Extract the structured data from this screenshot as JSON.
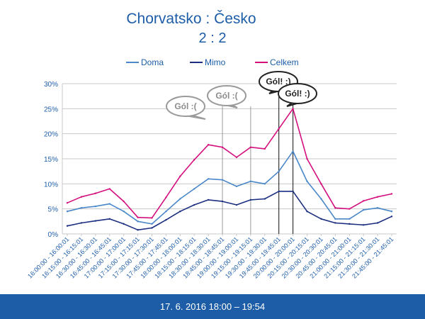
{
  "footer": {
    "caption": "17. 6. 2016 18:00 – 19:54"
  },
  "chart_data": {
    "type": "line",
    "title": "Chorvatsko : Česko",
    "subtitle": "2 : 2",
    "legend_position": "top",
    "grid": true,
    "ylim": [
      0,
      30
    ],
    "yticks": [
      "0%",
      "5%",
      "10%",
      "15%",
      "20%",
      "25%",
      "30%"
    ],
    "categories": [
      "16:00:00 - 16:00:01",
      "16:15:00 - 16:15:01",
      "16:30:00 - 16:30:01",
      "16:45:00 - 16:45:01",
      "17:00:00 - 17:00:01",
      "17:15:00 - 17:15:01",
      "17:30:00 - 17:30:01",
      "17:45:00 - 17:45:01",
      "18:00:00 - 18:00:01",
      "18:15:00 - 18:15:01",
      "18:30:00 - 18:30:01",
      "18:45:00 - 18:45:01",
      "19:00:00 - 19:00:01",
      "19:15:00 - 19:15:01",
      "19:30:00 - 19:30:01",
      "19:45:00 - 19:45:01",
      "20:00:00 - 20:00:01",
      "20:15:00 - 20:15:01",
      "20:30:00 - 20:30:01",
      "20:45:00 - 20:45:01",
      "21:00:00 - 21:00:01",
      "21:15:00 - 21:15:01",
      "21:30:00 - 21:30:01",
      "21:45:00 - 21:45:01"
    ],
    "series": [
      {
        "name": "Doma",
        "color": "#4a88c9",
        "values": [
          4.5,
          5.2,
          5.5,
          6.0,
          4.5,
          2.5,
          2.0,
          4.5,
          7.0,
          9.0,
          11.0,
          10.8,
          9.5,
          10.5,
          10.0,
          12.5,
          16.5,
          10.5,
          7.0,
          3.0,
          3.0,
          4.8,
          5.2,
          4.5
        ]
      },
      {
        "name": "Mimo",
        "color": "#1c2f80",
        "values": [
          1.6,
          2.2,
          2.6,
          3.0,
          2.0,
          0.8,
          1.2,
          2.8,
          4.5,
          5.8,
          6.8,
          6.5,
          5.8,
          6.8,
          7.0,
          8.5,
          8.5,
          4.5,
          3.0,
          2.2,
          2.0,
          1.8,
          2.2,
          3.5
        ]
      },
      {
        "name": "Celkem",
        "color": "#d4107e",
        "values": [
          6.2,
          7.4,
          8.1,
          9.0,
          6.5,
          3.3,
          3.2,
          7.3,
          11.5,
          14.8,
          17.8,
          17.3,
          15.3,
          17.3,
          17.0,
          21.0,
          25.0,
          15.0,
          10.0,
          5.2,
          5.0,
          6.6,
          7.4,
          8.0
        ]
      }
    ],
    "goal_markers": [
      {
        "category": "18:45:00 - 18:45:01",
        "label": "Gól :("
      },
      {
        "category": "19:15:00 - 19:15:01",
        "label": "Gól :("
      },
      {
        "category": "19:45:00 - 19:45:01",
        "label": "Gól! :)"
      },
      {
        "category": "20:00:00 - 20:00:01",
        "label": "Gól! :)"
      }
    ]
  }
}
